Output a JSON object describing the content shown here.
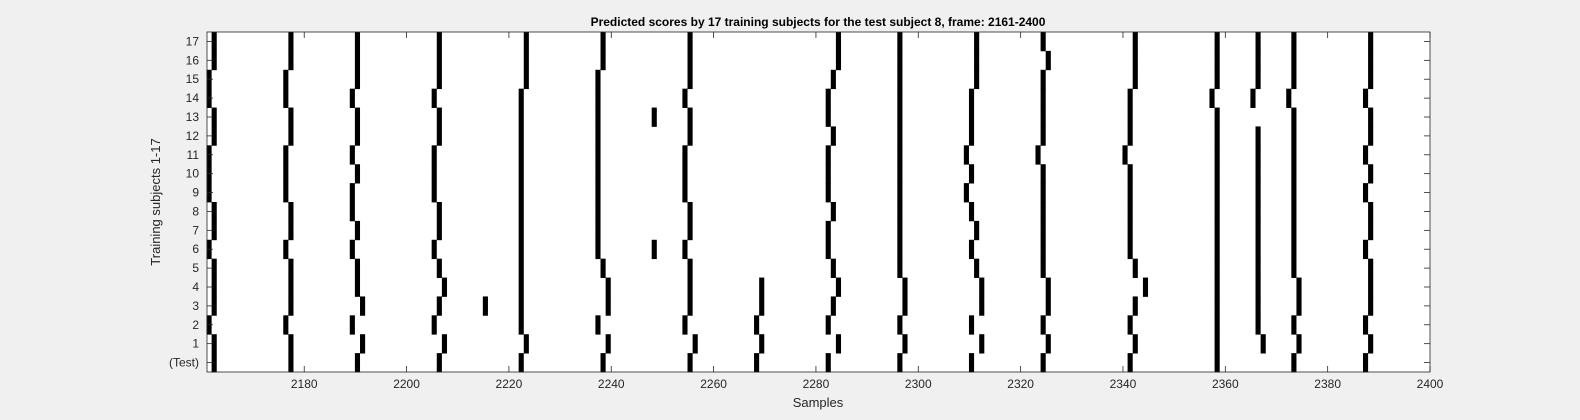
{
  "chart_data": {
    "type": "heatmap",
    "title": "Predicted scores by 17 training subjects for the test subject 8, frame: 2161-2400",
    "xlabel": "Samples",
    "ylabel": "Training subjects 1-17",
    "xlim": [
      2161,
      2400
    ],
    "xticks": [
      2180,
      2200,
      2220,
      2240,
      2260,
      2280,
      2300,
      2320,
      2340,
      2360,
      2380,
      2400
    ],
    "row_labels": [
      "17",
      "16",
      "15",
      "14",
      "13",
      "12",
      "11",
      "10",
      "9",
      "8",
      "7",
      "6",
      "5",
      "4",
      "3",
      "2",
      "1",
      "(Test)"
    ],
    "background_color": "#ffffff",
    "mark_color": "#000000",
    "grid": false,
    "rows": [
      {
        "label": "17",
        "marks": [
          2162,
          2177,
          2190,
          2206,
          2223,
          2238,
          2255,
          2284,
          2296,
          2311,
          2324,
          2342,
          2358,
          2366,
          2373,
          2388
        ]
      },
      {
        "label": "16",
        "marks": [
          2162,
          2177,
          2190,
          2206,
          2223,
          2238,
          2255,
          2284,
          2296,
          2311,
          2325,
          2342,
          2358,
          2366,
          2373,
          2388
        ]
      },
      {
        "label": "15",
        "marks": [
          2161,
          2176,
          2190,
          2206,
          2223,
          2237,
          2255,
          2283,
          2296,
          2311,
          2324,
          2342,
          2358,
          2366,
          2373,
          2388
        ]
      },
      {
        "label": "14",
        "marks": [
          2161,
          2176,
          2189,
          2205,
          2222,
          2237,
          2254,
          2282,
          2296,
          2310,
          2324,
          2341,
          2357,
          2365,
          2372,
          2387
        ]
      },
      {
        "label": "13",
        "marks": [
          2162,
          2177,
          2190,
          2206,
          2222,
          2237,
          2248,
          2255,
          2282,
          2296,
          2310,
          2324,
          2341,
          2358,
          2373,
          2388
        ]
      },
      {
        "label": "12",
        "marks": [
          2162,
          2177,
          2190,
          2206,
          2222,
          2237,
          2255,
          2283,
          2296,
          2310,
          2324,
          2341,
          2358,
          2366,
          2373,
          2388
        ]
      },
      {
        "label": "11",
        "marks": [
          2161,
          2176,
          2189,
          2205,
          2222,
          2237,
          2254,
          2282,
          2296,
          2309,
          2323,
          2340,
          2358,
          2366,
          2373,
          2387
        ]
      },
      {
        "label": "10",
        "marks": [
          2161,
          2176,
          2190,
          2205,
          2222,
          2237,
          2254,
          2282,
          2296,
          2310,
          2324,
          2341,
          2358,
          2366,
          2373,
          2388
        ]
      },
      {
        "label": "9",
        "marks": [
          2161,
          2176,
          2189,
          2205,
          2222,
          2237,
          2254,
          2282,
          2296,
          2309,
          2324,
          2341,
          2358,
          2366,
          2373,
          2387
        ]
      },
      {
        "label": "8",
        "marks": [
          2162,
          2177,
          2189,
          2206,
          2222,
          2237,
          2255,
          2283,
          2296,
          2310,
          2324,
          2341,
          2358,
          2366,
          2373,
          2388
        ]
      },
      {
        "label": "7",
        "marks": [
          2162,
          2177,
          2190,
          2206,
          2222,
          2237,
          2255,
          2282,
          2296,
          2311,
          2324,
          2341,
          2358,
          2366,
          2373,
          2388
        ]
      },
      {
        "label": "6",
        "marks": [
          2161,
          2176,
          2189,
          2205,
          2222,
          2237,
          2248,
          2254,
          2282,
          2296,
          2310,
          2324,
          2341,
          2358,
          2366,
          2373,
          2387
        ]
      },
      {
        "label": "5",
        "marks": [
          2162,
          2177,
          2190,
          2206,
          2222,
          2238,
          2255,
          2283,
          2296,
          2311,
          2324,
          2342,
          2358,
          2366,
          2373,
          2388
        ]
      },
      {
        "label": "4",
        "marks": [
          2162,
          2177,
          2190,
          2207,
          2222,
          2239,
          2255,
          2269,
          2284,
          2297,
          2312,
          2325,
          2344,
          2358,
          2366,
          2374,
          2388
        ]
      },
      {
        "label": "3",
        "marks": [
          2162,
          2177,
          2191,
          2206,
          2215,
          2222,
          2239,
          2255,
          2269,
          2283,
          2297,
          2312,
          2325,
          2342,
          2358,
          2366,
          2374,
          2388
        ]
      },
      {
        "label": "2",
        "marks": [
          2161,
          2176,
          2189,
          2205,
          2222,
          2237,
          2254,
          2268,
          2282,
          2296,
          2310,
          2324,
          2341,
          2358,
          2366,
          2373,
          2387
        ]
      },
      {
        "label": "1",
        "marks": [
          2162,
          2177,
          2191,
          2207,
          2223,
          2239,
          2256,
          2269,
          2284,
          2297,
          2312,
          2325,
          2342,
          2358,
          2367,
          2374,
          2388
        ]
      },
      {
        "label": "(Test)",
        "marks": [
          2162,
          2177,
          2190,
          2206,
          2222,
          2238,
          2255,
          2268,
          2282,
          2296,
          2310,
          2324,
          2341,
          2358,
          2373,
          2387
        ]
      }
    ]
  }
}
